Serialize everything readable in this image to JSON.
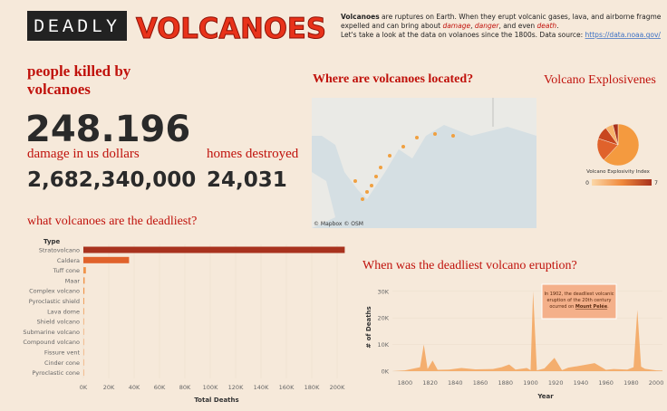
{
  "header": {
    "tag": "DEADLY",
    "title": "VOLCANOES"
  },
  "description": {
    "lead": "Volcanoes",
    "line1": " are ruptures on Earth. When they erupt volcanic gases, lava, and airborne fragme",
    "line2": [
      "expelled and can bring about ",
      "damage",
      ", ",
      "danger",
      ", and even ",
      "death",
      "."
    ],
    "line3": "Let's take a look at the data on volanoes since the 1800s. Data source: ",
    "link": "https://data.noaa.gov/"
  },
  "kpis": {
    "killed_label": [
      "people killed by",
      "volcanoes"
    ],
    "killed_value": "248.196",
    "damage_label": "damage in us dollars",
    "damage_value": "2,682,340,000",
    "homes_label": "homes destroyed",
    "homes_value": "24,031"
  },
  "map": {
    "title": "Where are volcanoes located?",
    "attribution": "© Mapbox © OSM"
  },
  "chart_data": [
    {
      "type": "bar",
      "title": "what volcanoes are the deadliest?",
      "legend_title": "Type",
      "xlabel": "Total Deaths",
      "categories": [
        "Stratovolcano",
        "Caldera",
        "Tuff cone",
        "Maar",
        "Complex volcano",
        "Pyroclastic shield",
        "Lava dome",
        "Shield volcano",
        "Submarine volcano",
        "Compound volcano",
        "Fissure vent",
        "Cinder cone",
        "Pyroclastic cone"
      ],
      "values": [
        206000,
        36000,
        2000,
        1000,
        800,
        600,
        500,
        400,
        300,
        200,
        100,
        100,
        50
      ],
      "colors": [
        "#a8321e",
        "#e0622b",
        "#f0944a",
        "#f0944a",
        "#f0944a",
        "#f0944a",
        "#f0944a",
        "#f0944a",
        "#f0944a",
        "#f0944a",
        "#f0944a",
        "#f0944a",
        "#f0944a"
      ],
      "xlim": [
        0,
        210000
      ],
      "xticks": [
        {
          "value": 0,
          "label": "0K"
        },
        {
          "value": 20000,
          "label": "20K"
        },
        {
          "value": 40000,
          "label": "40K"
        },
        {
          "value": 60000,
          "label": "60K"
        },
        {
          "value": 80000,
          "label": "80K"
        },
        {
          "value": 100000,
          "label": "100K"
        },
        {
          "value": 120000,
          "label": "120K"
        },
        {
          "value": 140000,
          "label": "140K"
        },
        {
          "value": 160000,
          "label": "160K"
        },
        {
          "value": 180000,
          "label": "180K"
        },
        {
          "value": 200000,
          "label": "200K"
        }
      ]
    },
    {
      "type": "area",
      "title": "When was the deadliest volcano eruption?",
      "xlabel": "Year",
      "ylabel": "# of Deaths",
      "color": "#f3a35a",
      "x": [
        1790,
        1800,
        1812,
        1815,
        1818,
        1822,
        1826,
        1835,
        1845,
        1856,
        1870,
        1877,
        1883,
        1888,
        1897,
        1900,
        1902,
        1905,
        1911,
        1919,
        1925,
        1930,
        1951,
        1960,
        1966,
        1977,
        1982,
        1985,
        1988,
        1991,
        2000,
        2005
      ],
      "values": [
        0,
        300,
        1500,
        10000,
        800,
        4000,
        500,
        600,
        1200,
        700,
        800,
        1500,
        2500,
        600,
        1200,
        400,
        30000,
        300,
        1000,
        5000,
        400,
        1300,
        3000,
        500,
        800,
        600,
        1500,
        23000,
        1700,
        900,
        300,
        200
      ],
      "xlim": [
        1790,
        2005
      ],
      "xticks": [
        1800,
        1820,
        1840,
        1860,
        1880,
        1900,
        1920,
        1940,
        1960,
        1980,
        2000
      ],
      "ylim": [
        0,
        33000
      ],
      "yticks": [
        {
          "value": 0,
          "label": "0K"
        },
        {
          "value": 10000,
          "label": "10K"
        },
        {
          "value": 20000,
          "label": "20K"
        },
        {
          "value": 30000,
          "label": "30K"
        }
      ],
      "annotation": [
        "In 1902, the deadliest volcanic",
        "eruption of the 20th century",
        "ocurred on ",
        "Mount Pelée",
        "."
      ]
    },
    {
      "type": "pie",
      "title": "Volcano Explosivenes",
      "legend_title": "Volcano Explosivity Index",
      "categories": [
        null,
        null,
        null,
        null,
        null
      ],
      "values": [
        62,
        18,
        10,
        6,
        4
      ],
      "colors": [
        "#f49a3f",
        "#e0622b",
        "#c8461f",
        "#f7b36b",
        "#a8321e"
      ],
      "colorbar_lim": [
        0,
        7
      ],
      "colorbar_ticks": [
        0,
        7
      ]
    }
  ]
}
